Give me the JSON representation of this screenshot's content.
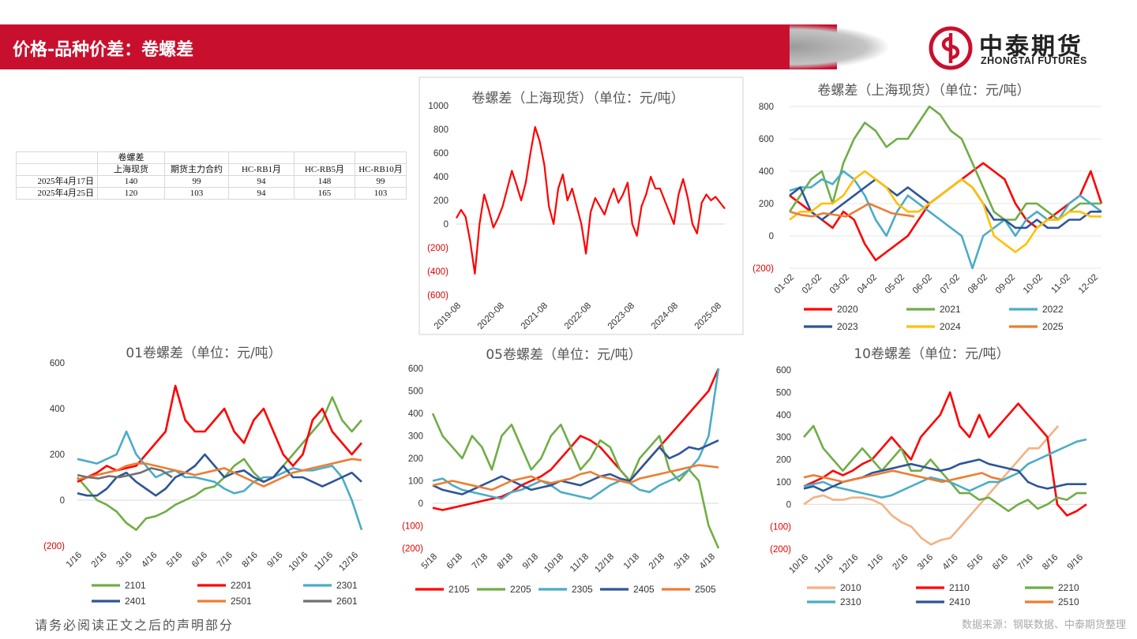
{
  "header": {
    "title": "价格-品种价差：卷螺差"
  },
  "logo": {
    "cn": "中泰期货",
    "en": "ZHONGTAI FUTURES"
  },
  "table": {
    "title": "卷螺差",
    "columns": [
      "上海现货",
      "期货主力合约",
      "HC-RB1月",
      "HC-RB5月",
      "HC-RB10月"
    ],
    "rows": [
      {
        "date": "2025年4月17日",
        "values": [
          "140",
          "99",
          "94",
          "148",
          "99"
        ]
      },
      {
        "date": "2025年4月25日",
        "values": [
          "120",
          "103",
          "94",
          "165",
          "103"
        ]
      }
    ]
  },
  "footer": {
    "disclaimer": "请务必阅读正文之后的声明部分",
    "source": "数据来源：钢联数据、中泰期货整理"
  },
  "chart_data": [
    {
      "id": "spot",
      "type": "line",
      "title": "卷螺差（上海现货）（单位：元/吨）",
      "ylim": [
        -600,
        1000
      ],
      "ytick_labels": [
        "1000",
        "800",
        "600",
        "400",
        "200",
        "0",
        "(200)",
        "(400)",
        "(600)"
      ],
      "xtick_labels": [
        "2019-08",
        "2020-08",
        "2021-08",
        "2022-08",
        "2023-08",
        "2024-08",
        "2025-08"
      ],
      "series": [
        {
          "name": "上海现货",
          "color": "#ff0000",
          "values": [
            50,
            120,
            60,
            -150,
            -420,
            0,
            250,
            120,
            -30,
            50,
            150,
            300,
            450,
            330,
            200,
            350,
            600,
            820,
            700,
            500,
            150,
            0,
            300,
            420,
            200,
            300,
            150,
            0,
            -250,
            100,
            220,
            150,
            80,
            200,
            300,
            180,
            250,
            350,
            0,
            -100,
            150,
            250,
            400,
            300,
            300,
            200,
            100,
            0,
            250,
            380,
            220,
            0,
            -80,
            180,
            250,
            200,
            230,
            180,
            130
          ]
        }
      ]
    },
    {
      "id": "yearly",
      "type": "line",
      "title": "卷螺差（上海现货）（单位：元/吨）",
      "ylim": [
        -200,
        800
      ],
      "ytick_labels": [
        "800",
        "600",
        "400",
        "200",
        "0",
        "(200)"
      ],
      "xtick_labels": [
        "01-02",
        "02-02",
        "03-02",
        "04-02",
        "05-02",
        "06-02",
        "07-02",
        "08-02",
        "09-02",
        "10-02",
        "11-02",
        "12-02"
      ],
      "series": [
        {
          "name": "2020",
          "color": "#ff0000",
          "values": [
            250,
            200,
            150,
            100,
            50,
            150,
            100,
            -50,
            -150,
            -100,
            -50,
            0,
            100,
            200,
            250,
            300,
            350,
            400,
            450,
            400,
            350,
            200,
            100,
            50,
            100,
            150,
            200,
            250,
            400,
            200
          ]
        },
        {
          "name": "2021",
          "color": "#70ad47",
          "values": [
            150,
            250,
            350,
            400,
            200,
            450,
            600,
            700,
            650,
            550,
            600,
            600,
            700,
            800,
            750,
            650,
            600,
            450,
            300,
            150,
            100,
            100,
            200,
            200,
            150,
            100,
            150,
            200,
            200,
            200
          ]
        },
        {
          "name": "2022",
          "color": "#4bacc6",
          "values": [
            280,
            300,
            300,
            350,
            320,
            400,
            350,
            250,
            100,
            0,
            150,
            250,
            200,
            150,
            100,
            50,
            0,
            -200,
            0,
            50,
            100,
            0,
            100,
            150,
            100,
            100,
            200,
            250,
            200,
            150
          ]
        },
        {
          "name": "2023",
          "color": "#2e5597",
          "values": [
            250,
            300,
            150,
            100,
            150,
            200,
            250,
            300,
            350,
            300,
            250,
            300,
            250,
            200,
            250,
            300,
            350,
            300,
            200,
            100,
            100,
            50,
            50,
            100,
            50,
            50,
            100,
            100,
            150,
            150
          ]
        },
        {
          "name": "2024",
          "color": "#ffc000",
          "values": [
            100,
            150,
            150,
            200,
            200,
            250,
            350,
            400,
            350,
            300,
            200,
            150,
            150,
            200,
            250,
            300,
            350,
            300,
            200,
            0,
            -50,
            -100,
            -50,
            50,
            100,
            100,
            150,
            150,
            120,
            120
          ]
        },
        {
          "name": "2025",
          "color": "#ed7d31",
          "values": [
            150,
            130,
            120,
            140,
            130,
            120,
            160,
            200,
            170,
            140,
            130,
            120
          ]
        }
      ]
    },
    {
      "id": "c01",
      "type": "line",
      "title": "01卷螺差（单位：元/吨）",
      "ylim": [
        -200,
        600
      ],
      "ytick_labels": [
        "600",
        "400",
        "200",
        "0",
        "(200)"
      ],
      "xtick_labels": [
        "1/16",
        "2/16",
        "3/16",
        "4/16",
        "5/16",
        "6/16",
        "7/16",
        "8/16",
        "9/16",
        "10/16",
        "11/16",
        "12/16"
      ],
      "series": [
        {
          "name": "2101",
          "color": "#70ad47",
          "values": [
            100,
            50,
            0,
            -20,
            -50,
            -100,
            -130,
            -80,
            -70,
            -50,
            -20,
            0,
            20,
            50,
            60,
            100,
            150,
            180,
            120,
            80,
            100,
            150,
            200,
            250,
            300,
            350,
            450,
            350,
            300,
            350
          ]
        },
        {
          "name": "2201",
          "color": "#ff0000",
          "values": [
            80,
            100,
            120,
            150,
            130,
            140,
            150,
            200,
            250,
            300,
            500,
            350,
            300,
            300,
            350,
            400,
            300,
            250,
            350,
            400,
            300,
            200,
            150,
            200,
            350,
            400,
            300,
            250,
            200,
            250
          ]
        },
        {
          "name": "2301",
          "color": "#4bacc6",
          "values": [
            180,
            170,
            160,
            180,
            200,
            300,
            200,
            150,
            100,
            120,
            130,
            100,
            100,
            90,
            80,
            50,
            30,
            40,
            80,
            100,
            100,
            120,
            140,
            130,
            130,
            140,
            150,
            100,
            0,
            -130
          ]
        },
        {
          "name": "2401",
          "color": "#2e5597",
          "values": [
            30,
            20,
            20,
            50,
            100,
            120,
            80,
            50,
            20,
            50,
            100,
            120,
            150,
            200,
            150,
            100,
            120,
            130,
            100,
            80,
            100,
            150,
            100,
            100,
            80,
            60,
            80,
            100,
            120,
            80
          ]
        },
        {
          "name": "2501",
          "color": "#ed7d31",
          "values": [
            90,
            100,
            110,
            120,
            130,
            150,
            160,
            160,
            150,
            140,
            130,
            120,
            110,
            120,
            130,
            140,
            120,
            100,
            80,
            60,
            80,
            100,
            120,
            130,
            140,
            150,
            160,
            170,
            180,
            175
          ]
        },
        {
          "name": "2601",
          "color": "#707070",
          "values": [
            110,
            100,
            95,
            105,
            100,
            110,
            120,
            140,
            130,
            100
          ]
        }
      ]
    },
    {
      "id": "c05",
      "type": "line",
      "title": "05卷螺差（单位：元/吨）",
      "ylim": [
        -200,
        600
      ],
      "ytick_labels": [
        "600",
        "500",
        "400",
        "300",
        "200",
        "100",
        "0",
        "(100)",
        "(200)"
      ],
      "xtick_labels": [
        "5/18",
        "6/18",
        "7/18",
        "8/18",
        "9/18",
        "10/18",
        "11/18",
        "12/18",
        "1/18",
        "2/18",
        "3/18",
        "4/18"
      ],
      "series": [
        {
          "name": "2105",
          "color": "#ff0000",
          "values": [
            -20,
            -30,
            -20,
            -10,
            0,
            10,
            20,
            30,
            50,
            80,
            100,
            120,
            150,
            200,
            250,
            300,
            280,
            250,
            200,
            150,
            100,
            150,
            200,
            250,
            300,
            350,
            400,
            450,
            500,
            600
          ]
        },
        {
          "name": "2205",
          "color": "#70ad47",
          "values": [
            400,
            300,
            250,
            200,
            300,
            250,
            150,
            300,
            350,
            250,
            150,
            200,
            300,
            350,
            250,
            150,
            200,
            280,
            250,
            150,
            100,
            200,
            250,
            300,
            150,
            100,
            150,
            100,
            -100,
            -200
          ]
        },
        {
          "name": "2305",
          "color": "#4bacc6",
          "values": [
            100,
            110,
            80,
            60,
            50,
            40,
            30,
            20,
            50,
            60,
            80,
            100,
            80,
            50,
            40,
            30,
            20,
            50,
            80,
            100,
            90,
            60,
            50,
            80,
            100,
            120,
            150,
            200,
            300,
            600
          ]
        },
        {
          "name": "2405",
          "color": "#2e5597",
          "values": [
            80,
            60,
            50,
            40,
            60,
            80,
            100,
            120,
            100,
            80,
            60,
            70,
            80,
            100,
            90,
            80,
            100,
            120,
            130,
            110,
            100,
            150,
            200,
            250,
            200,
            220,
            250,
            240,
            260,
            280
          ]
        },
        {
          "name": "2505",
          "color": "#ed7d31",
          "values": [
            80,
            90,
            100,
            90,
            80,
            70,
            60,
            80,
            100,
            110,
            120,
            100,
            90,
            100,
            110,
            130,
            140,
            120,
            110,
            100,
            90,
            110,
            120,
            130,
            140,
            150,
            160,
            170,
            165,
            160
          ]
        }
      ]
    },
    {
      "id": "c10",
      "type": "line",
      "title": "10卷螺差（单位：元/吨）",
      "ylim": [
        -200,
        600
      ],
      "ytick_labels": [
        "600",
        "500",
        "400",
        "300",
        "200",
        "100",
        "0",
        "(100)",
        "(200)"
      ],
      "xtick_labels": [
        "10/16",
        "11/16",
        "12/16",
        "1/16",
        "2/16",
        "3/16",
        "4/16",
        "5/16",
        "6/16",
        "7/16",
        "8/16",
        "9/16"
      ],
      "series": [
        {
          "name": "2010",
          "color": "#f4b183",
          "values": [
            0,
            30,
            40,
            20,
            20,
            30,
            30,
            20,
            0,
            -50,
            -80,
            -100,
            -150,
            -180,
            -160,
            -150,
            -100,
            -50,
            0,
            50,
            100,
            150,
            200,
            250,
            250,
            300,
            350
          ]
        },
        {
          "name": "2110",
          "color": "#ff0000",
          "values": [
            80,
            100,
            120,
            150,
            130,
            150,
            180,
            200,
            250,
            300,
            250,
            200,
            300,
            350,
            400,
            500,
            350,
            300,
            400,
            300,
            350,
            400,
            450,
            400,
            350,
            300,
            0,
            -50,
            -30,
            0
          ]
        },
        {
          "name": "2210",
          "color": "#70ad47",
          "values": [
            300,
            350,
            250,
            200,
            150,
            200,
            250,
            200,
            150,
            200,
            250,
            150,
            150,
            200,
            150,
            100,
            50,
            50,
            20,
            30,
            0,
            -30,
            0,
            20,
            -20,
            0,
            30,
            20,
            50,
            50
          ]
        },
        {
          "name": "2310",
          "color": "#4bacc6",
          "values": [
            80,
            90,
            100,
            80,
            70,
            60,
            50,
            40,
            30,
            40,
            60,
            80,
            100,
            120,
            110,
            100,
            80,
            60,
            80,
            100,
            100,
            120,
            140,
            180,
            200,
            220,
            240,
            260,
            280,
            290
          ]
        },
        {
          "name": "2410",
          "color": "#2e5597",
          "values": [
            70,
            80,
            60,
            80,
            100,
            110,
            120,
            140,
            150,
            160,
            170,
            180,
            170,
            160,
            150,
            160,
            180,
            190,
            200,
            180,
            170,
            160,
            150,
            100,
            80,
            70,
            80,
            90,
            90,
            90
          ]
        },
        {
          "name": "2510",
          "color": "#ed7d31",
          "values": [
            120,
            130,
            120,
            110,
            100,
            110,
            120,
            130,
            140,
            150,
            140,
            130,
            120,
            110,
            100,
            110,
            120,
            130,
            140,
            120,
            110
          ]
        }
      ]
    }
  ]
}
